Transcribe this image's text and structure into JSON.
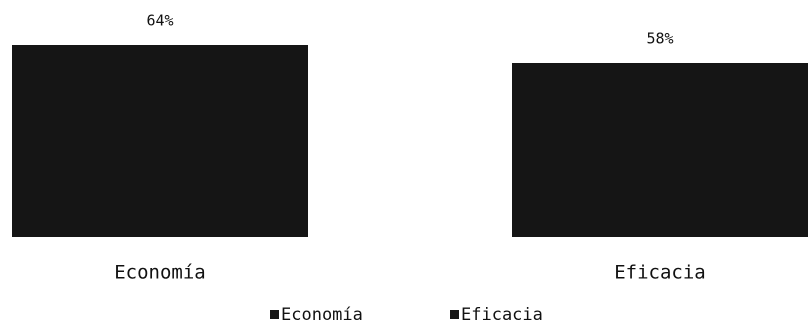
{
  "chart_data": {
    "type": "bar",
    "categories": [
      "Economía",
      "Eficacia"
    ],
    "values": [
      64,
      58
    ],
    "value_labels": [
      "64%",
      "58%"
    ],
    "color": "#151515",
    "legend": true
  }
}
